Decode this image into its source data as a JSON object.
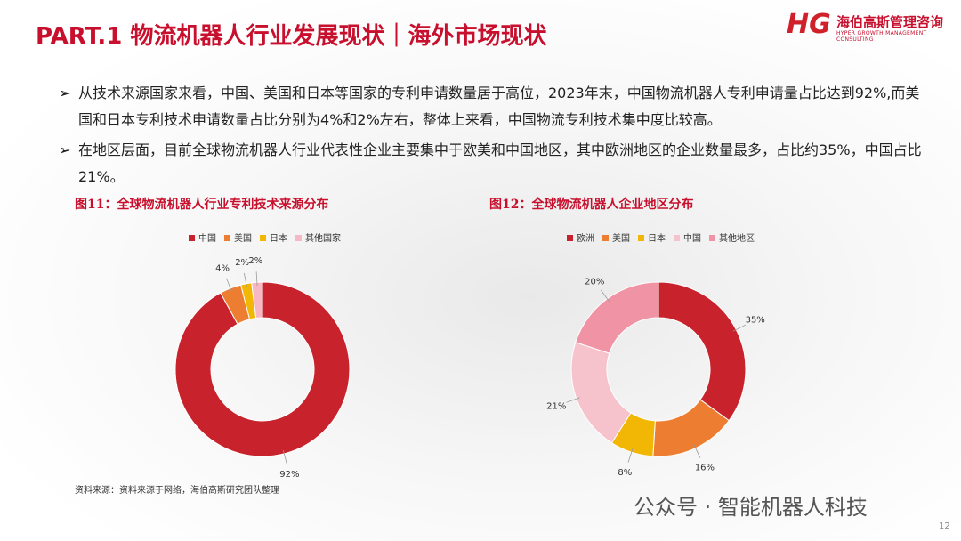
{
  "header": {
    "title": "PART.1 物流机器人行业发展现状｜海外市场现状",
    "logo_mark": "HG",
    "logo_name": "海伯高斯管理咨询",
    "logo_sub": "HYPER GROWTH MANAGEMENT CONSULTING"
  },
  "bullets": [
    "从技术来源国家来看，中国、美国和日本等国家的专利申请数量居于高位，2023年末，中国物流机器人专利申请量占比达到92%,而美国和日本专利技术申请数量占比分别为4%和2%左右，整体上来看，中国物流专利技术集中度比较高。",
    "在地区层面，目前全球物流机器人行业代表性企业主要集中于欧美和中国地区，其中欧洲地区的企业数量最多，占比约35%，中国占比21%。"
  ],
  "chart_data": [
    {
      "type": "donut",
      "title": "图11：全球物流机器人行业专利技术来源分布",
      "categories": [
        "中国",
        "美国",
        "日本",
        "其他国家"
      ],
      "values": [
        92,
        4,
        2,
        2
      ],
      "value_labels": [
        "92%",
        "4%",
        "2%",
        "2%"
      ],
      "colors": [
        "#c8232c",
        "#ed7d31",
        "#f2b705",
        "#f5b8c4"
      ],
      "legend": "top"
    },
    {
      "type": "donut",
      "title": "图12：全球物流机器人企业地区分布",
      "categories": [
        "欧洲",
        "美国",
        "日本",
        "中国",
        "其他地区"
      ],
      "values": [
        35,
        16,
        8,
        21,
        20
      ],
      "value_labels": [
        "35%",
        "16%",
        "8%",
        "21%",
        "20%"
      ],
      "colors": [
        "#c8232c",
        "#ed7d31",
        "#f2b705",
        "#f6c3cd",
        "#f094a5"
      ],
      "legend": "top"
    }
  ],
  "source": "资料来源：资料来源于网络，海伯高斯研究团队整理",
  "watermark": "公众号 · 智能机器人科技",
  "page_number": "12"
}
